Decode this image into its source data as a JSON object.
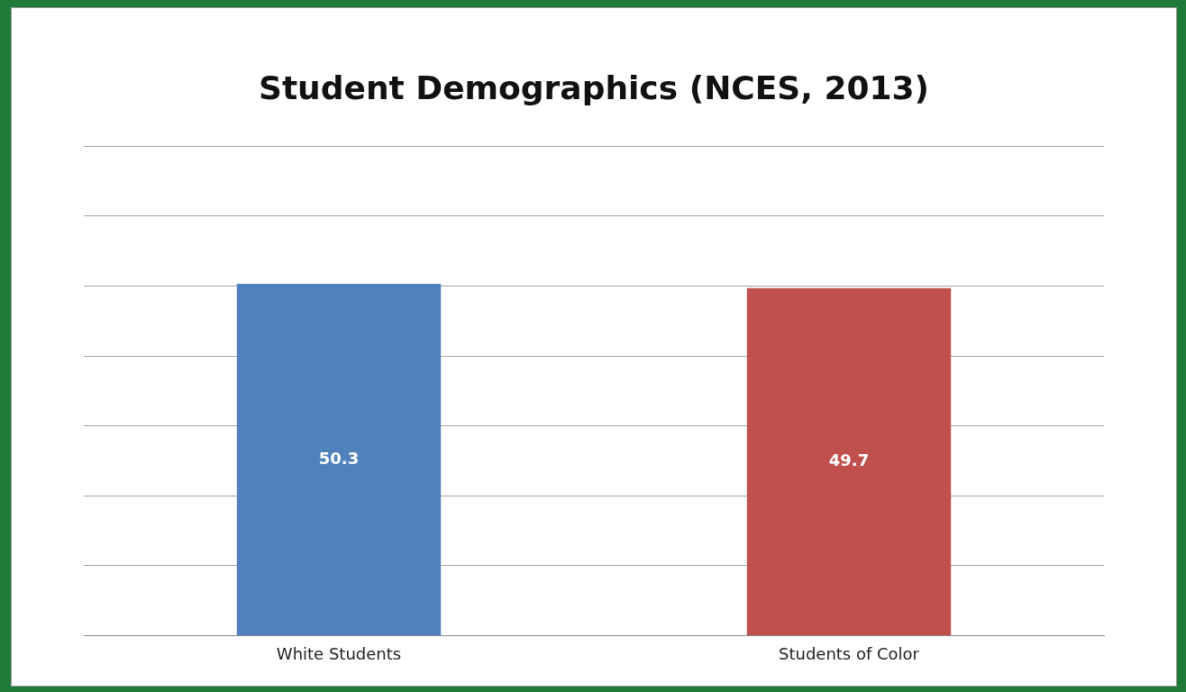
{
  "chart_data": {
    "type": "bar",
    "title": "Student Demographics (NCES, 2013)",
    "categories": [
      "White Students",
      "Students of Color"
    ],
    "values": [
      50.3,
      49.7
    ],
    "colors": [
      "#4f81bd",
      "#c0504d"
    ],
    "data_labels": true,
    "ylim": [
      0,
      70
    ],
    "yticks": [
      {
        "value": 0,
        "label": null
      },
      {
        "value": 10,
        "label": null
      },
      {
        "value": 20,
        "label": null
      },
      {
        "value": 30,
        "label": null
      },
      {
        "value": 40,
        "label": null
      },
      {
        "value": 50,
        "label": null
      },
      {
        "value": 60,
        "label": null
      },
      {
        "value": 70,
        "label": null
      }
    ],
    "grid": "y",
    "tick_labels": "x"
  }
}
